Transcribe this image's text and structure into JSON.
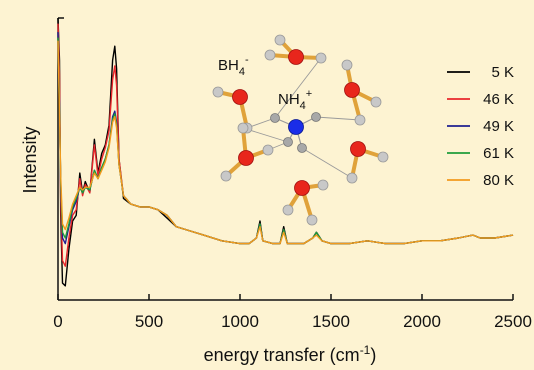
{
  "chart_data": {
    "type": "line",
    "title": "",
    "xlabel": "energy transfer (cm",
    "xlabel_superscript": "-1",
    "xlabel_suffix": ")",
    "ylabel": "Intensity",
    "xlim": [
      0,
      2500
    ],
    "ylim": [
      0,
      1
    ],
    "xticks": [
      0,
      500,
      1000,
      1500,
      2000,
      2500
    ],
    "x_tick_labels": [
      "0",
      "500",
      "1000",
      "1500",
      "2000",
      "2500"
    ],
    "y_tick_labels": false,
    "grid": false,
    "legend": {
      "placement": "top-right",
      "entries": [
        "5 K",
        "46 K",
        "49 K",
        "61 K",
        "80 K"
      ]
    },
    "annotations": {
      "anion_label": "BH",
      "anion_subscript": "4",
      "anion_charge": "-",
      "cation_label": "NH",
      "cation_subscript": "4",
      "cation_charge": "+"
    },
    "series": [
      {
        "name": "5 K",
        "color": "#000000",
        "points": [
          [
            0,
            1.0
          ],
          [
            8,
            0.85
          ],
          [
            15,
            0.3
          ],
          [
            25,
            0.06
          ],
          [
            40,
            0.05
          ],
          [
            60,
            0.18
          ],
          [
            80,
            0.28
          ],
          [
            100,
            0.3
          ],
          [
            120,
            0.45
          ],
          [
            135,
            0.38
          ],
          [
            150,
            0.42
          ],
          [
            175,
            0.38
          ],
          [
            200,
            0.57
          ],
          [
            220,
            0.45
          ],
          [
            240,
            0.52
          ],
          [
            260,
            0.55
          ],
          [
            280,
            0.62
          ],
          [
            300,
            0.85
          ],
          [
            312,
            0.9
          ],
          [
            322,
            0.82
          ],
          [
            335,
            0.5
          ],
          [
            360,
            0.36
          ],
          [
            400,
            0.34
          ],
          [
            450,
            0.33
          ],
          [
            500,
            0.33
          ],
          [
            550,
            0.32
          ],
          [
            600,
            0.29
          ],
          [
            650,
            0.26
          ],
          [
            700,
            0.25
          ],
          [
            800,
            0.23
          ],
          [
            900,
            0.21
          ],
          [
            1000,
            0.2
          ],
          [
            1050,
            0.2
          ],
          [
            1090,
            0.22
          ],
          [
            1110,
            0.28
          ],
          [
            1125,
            0.21
          ],
          [
            1180,
            0.2
          ],
          [
            1220,
            0.2
          ],
          [
            1240,
            0.26
          ],
          [
            1260,
            0.2
          ],
          [
            1350,
            0.2
          ],
          [
            1400,
            0.22
          ],
          [
            1420,
            0.24
          ],
          [
            1450,
            0.21
          ],
          [
            1500,
            0.2
          ],
          [
            1600,
            0.2
          ],
          [
            1700,
            0.21
          ],
          [
            1800,
            0.2
          ],
          [
            1900,
            0.2
          ],
          [
            2000,
            0.21
          ],
          [
            2100,
            0.21
          ],
          [
            2200,
            0.22
          ],
          [
            2280,
            0.23
          ],
          [
            2320,
            0.22
          ],
          [
            2400,
            0.22
          ],
          [
            2500,
            0.23
          ]
        ]
      },
      {
        "name": "46 K",
        "color": "#e8262b",
        "points": [
          [
            0,
            0.98
          ],
          [
            8,
            0.8
          ],
          [
            15,
            0.35
          ],
          [
            25,
            0.14
          ],
          [
            40,
            0.12
          ],
          [
            60,
            0.22
          ],
          [
            80,
            0.3
          ],
          [
            100,
            0.32
          ],
          [
            120,
            0.43
          ],
          [
            135,
            0.37
          ],
          [
            150,
            0.41
          ],
          [
            175,
            0.38
          ],
          [
            200,
            0.55
          ],
          [
            220,
            0.44
          ],
          [
            240,
            0.5
          ],
          [
            260,
            0.54
          ],
          [
            280,
            0.6
          ],
          [
            300,
            0.78
          ],
          [
            312,
            0.83
          ],
          [
            322,
            0.76
          ],
          [
            335,
            0.5
          ],
          [
            360,
            0.37
          ],
          [
            400,
            0.34
          ],
          [
            450,
            0.33
          ],
          [
            500,
            0.33
          ],
          [
            550,
            0.32
          ],
          [
            600,
            0.3
          ],
          [
            650,
            0.26
          ],
          [
            700,
            0.25
          ],
          [
            800,
            0.23
          ],
          [
            900,
            0.21
          ],
          [
            1000,
            0.2
          ],
          [
            1050,
            0.2
          ],
          [
            1090,
            0.22
          ],
          [
            1110,
            0.27
          ],
          [
            1125,
            0.21
          ],
          [
            1180,
            0.2
          ],
          [
            1220,
            0.2
          ],
          [
            1240,
            0.25
          ],
          [
            1260,
            0.2
          ],
          [
            1350,
            0.2
          ],
          [
            1400,
            0.22
          ],
          [
            1420,
            0.24
          ],
          [
            1450,
            0.21
          ],
          [
            1500,
            0.2
          ],
          [
            1600,
            0.2
          ],
          [
            1700,
            0.21
          ],
          [
            1800,
            0.2
          ],
          [
            1900,
            0.2
          ],
          [
            2000,
            0.21
          ],
          [
            2100,
            0.21
          ],
          [
            2200,
            0.22
          ],
          [
            2280,
            0.23
          ],
          [
            2320,
            0.22
          ],
          [
            2400,
            0.22
          ],
          [
            2500,
            0.23
          ]
        ]
      },
      {
        "name": "49 K",
        "color": "#1f1f8f",
        "points": [
          [
            0,
            0.95
          ],
          [
            8,
            0.7
          ],
          [
            15,
            0.4
          ],
          [
            25,
            0.22
          ],
          [
            40,
            0.2
          ],
          [
            60,
            0.26
          ],
          [
            80,
            0.32
          ],
          [
            100,
            0.35
          ],
          [
            120,
            0.4
          ],
          [
            135,
            0.38
          ],
          [
            150,
            0.4
          ],
          [
            175,
            0.39
          ],
          [
            200,
            0.46
          ],
          [
            220,
            0.43
          ],
          [
            240,
            0.47
          ],
          [
            260,
            0.5
          ],
          [
            280,
            0.55
          ],
          [
            300,
            0.65
          ],
          [
            312,
            0.67
          ],
          [
            322,
            0.63
          ],
          [
            335,
            0.48
          ],
          [
            360,
            0.37
          ],
          [
            400,
            0.34
          ],
          [
            450,
            0.33
          ],
          [
            500,
            0.33
          ],
          [
            550,
            0.32
          ],
          [
            600,
            0.3
          ],
          [
            650,
            0.26
          ],
          [
            700,
            0.25
          ],
          [
            800,
            0.23
          ],
          [
            900,
            0.21
          ],
          [
            1000,
            0.2
          ],
          [
            1050,
            0.2
          ],
          [
            1090,
            0.22
          ],
          [
            1110,
            0.27
          ],
          [
            1125,
            0.21
          ],
          [
            1180,
            0.2
          ],
          [
            1220,
            0.2
          ],
          [
            1240,
            0.25
          ],
          [
            1260,
            0.2
          ],
          [
            1350,
            0.2
          ],
          [
            1400,
            0.22
          ],
          [
            1420,
            0.24
          ],
          [
            1450,
            0.21
          ],
          [
            1500,
            0.2
          ],
          [
            1600,
            0.2
          ],
          [
            1700,
            0.21
          ],
          [
            1800,
            0.2
          ],
          [
            1900,
            0.2
          ],
          [
            2000,
            0.21
          ],
          [
            2100,
            0.21
          ],
          [
            2200,
            0.22
          ],
          [
            2280,
            0.23
          ],
          [
            2320,
            0.22
          ],
          [
            2400,
            0.22
          ],
          [
            2500,
            0.23
          ]
        ]
      },
      {
        "name": "61 K",
        "color": "#1e9c3a",
        "points": [
          [
            0,
            0.93
          ],
          [
            8,
            0.68
          ],
          [
            15,
            0.42
          ],
          [
            25,
            0.24
          ],
          [
            40,
            0.22
          ],
          [
            60,
            0.27
          ],
          [
            80,
            0.33
          ],
          [
            100,
            0.36
          ],
          [
            120,
            0.4
          ],
          [
            135,
            0.38
          ],
          [
            150,
            0.4
          ],
          [
            175,
            0.39
          ],
          [
            200,
            0.46
          ],
          [
            220,
            0.43
          ],
          [
            240,
            0.47
          ],
          [
            260,
            0.5
          ],
          [
            280,
            0.55
          ],
          [
            300,
            0.64
          ],
          [
            312,
            0.66
          ],
          [
            322,
            0.62
          ],
          [
            335,
            0.48
          ],
          [
            360,
            0.37
          ],
          [
            400,
            0.34
          ],
          [
            450,
            0.33
          ],
          [
            500,
            0.33
          ],
          [
            550,
            0.32
          ],
          [
            600,
            0.3
          ],
          [
            650,
            0.26
          ],
          [
            700,
            0.25
          ],
          [
            800,
            0.23
          ],
          [
            900,
            0.21
          ],
          [
            1000,
            0.2
          ],
          [
            1050,
            0.2
          ],
          [
            1090,
            0.22
          ],
          [
            1110,
            0.27
          ],
          [
            1125,
            0.21
          ],
          [
            1180,
            0.2
          ],
          [
            1220,
            0.2
          ],
          [
            1240,
            0.25
          ],
          [
            1260,
            0.2
          ],
          [
            1350,
            0.2
          ],
          [
            1400,
            0.22
          ],
          [
            1420,
            0.24
          ],
          [
            1450,
            0.21
          ],
          [
            1500,
            0.2
          ],
          [
            1600,
            0.2
          ],
          [
            1700,
            0.21
          ],
          [
            1800,
            0.2
          ],
          [
            1900,
            0.2
          ],
          [
            2000,
            0.21
          ],
          [
            2100,
            0.21
          ],
          [
            2200,
            0.22
          ],
          [
            2280,
            0.23
          ],
          [
            2320,
            0.22
          ],
          [
            2400,
            0.22
          ],
          [
            2500,
            0.23
          ]
        ]
      },
      {
        "name": "80 K",
        "color": "#f29a1d",
        "points": [
          [
            0,
            0.92
          ],
          [
            8,
            0.66
          ],
          [
            15,
            0.44
          ],
          [
            25,
            0.27
          ],
          [
            40,
            0.25
          ],
          [
            60,
            0.29
          ],
          [
            80,
            0.34
          ],
          [
            100,
            0.37
          ],
          [
            120,
            0.4
          ],
          [
            135,
            0.39
          ],
          [
            150,
            0.4
          ],
          [
            175,
            0.4
          ],
          [
            200,
            0.45
          ],
          [
            220,
            0.43
          ],
          [
            240,
            0.46
          ],
          [
            260,
            0.49
          ],
          [
            280,
            0.54
          ],
          [
            300,
            0.63
          ],
          [
            312,
            0.65
          ],
          [
            322,
            0.61
          ],
          [
            335,
            0.48
          ],
          [
            360,
            0.37
          ],
          [
            400,
            0.34
          ],
          [
            450,
            0.33
          ],
          [
            500,
            0.33
          ],
          [
            550,
            0.32
          ],
          [
            600,
            0.3
          ],
          [
            650,
            0.26
          ],
          [
            700,
            0.25
          ],
          [
            800,
            0.23
          ],
          [
            900,
            0.21
          ],
          [
            1000,
            0.2
          ],
          [
            1050,
            0.2
          ],
          [
            1090,
            0.22
          ],
          [
            1110,
            0.26
          ],
          [
            1125,
            0.21
          ],
          [
            1180,
            0.2
          ],
          [
            1220,
            0.2
          ],
          [
            1240,
            0.24
          ],
          [
            1260,
            0.2
          ],
          [
            1350,
            0.2
          ],
          [
            1400,
            0.22
          ],
          [
            1420,
            0.23
          ],
          [
            1450,
            0.21
          ],
          [
            1500,
            0.2
          ],
          [
            1600,
            0.2
          ],
          [
            1700,
            0.21
          ],
          [
            1800,
            0.2
          ],
          [
            1900,
            0.2
          ],
          [
            2000,
            0.21
          ],
          [
            2100,
            0.21
          ],
          [
            2200,
            0.22
          ],
          [
            2280,
            0.23
          ],
          [
            2320,
            0.22
          ],
          [
            2400,
            0.22
          ],
          [
            2500,
            0.23
          ]
        ]
      }
    ],
    "inset_colors": {
      "bond": "#e0a23a",
      "oxygen_like": "#e8261c",
      "nitrogen": "#1a2de8",
      "hydrogen": "#c8c8c8",
      "thin_bond": "#9a9a9a"
    }
  }
}
